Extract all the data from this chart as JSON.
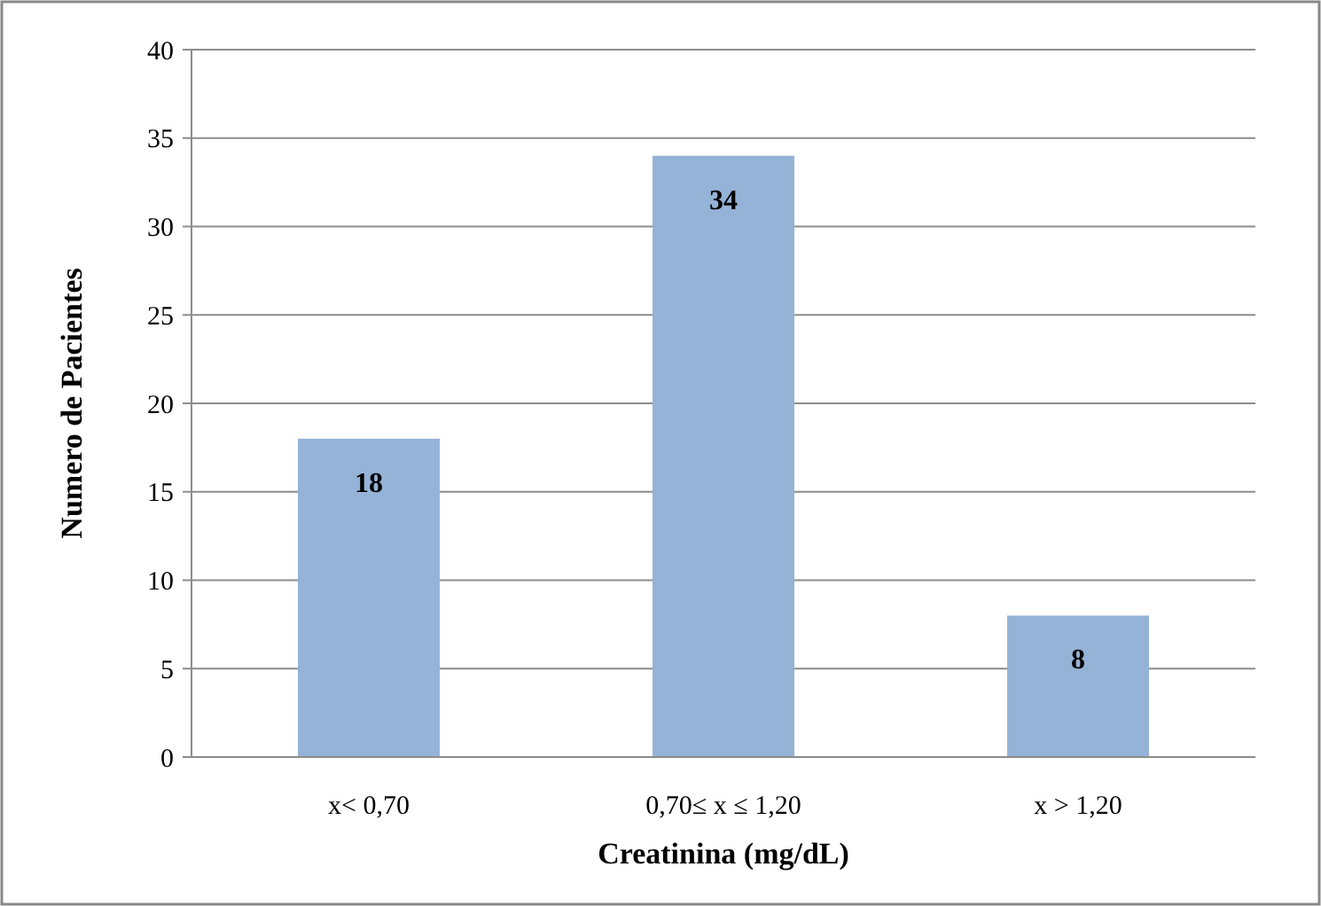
{
  "chart_data": {
    "type": "bar",
    "xlabel": "Creatinina (mg/dL)",
    "ylabel": "Numero de Pacientes",
    "categories": [
      "x< 0,70",
      "0,70≤ x ≤ 1,20",
      "x > 1,20"
    ],
    "values": [
      18,
      34,
      8
    ],
    "color": "#95b3d7",
    "ylim": [
      0,
      40
    ],
    "yticks": [
      0,
      5,
      10,
      15,
      20,
      25,
      30,
      35,
      40
    ],
    "grid": "y",
    "data_labels": true
  }
}
